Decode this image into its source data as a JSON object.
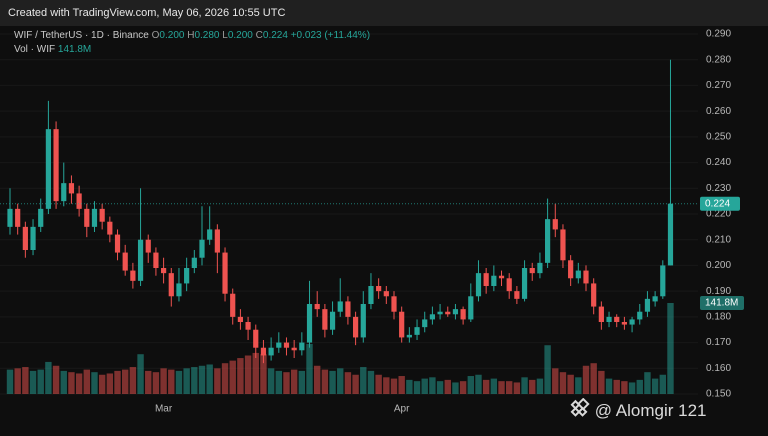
{
  "header": {
    "created": "Created with TradingView.com, May 06, 2026 10:55 UTC",
    "symbol": "WIF / TetherUS · 1D · Binance",
    "o_label": "O",
    "o": "0.200",
    "h_label": "H",
    "h": "0.280",
    "l_label": "L",
    "l": "0.200",
    "c_label": "C",
    "c": "0.224",
    "change": "+0.023 (+11.44%)",
    "vol_label": "Vol · WIF",
    "vol": "141.8M"
  },
  "watermark": "@ Alomgir 121",
  "chart_data": {
    "type": "candlestick",
    "categories": [
      null,
      null,
      null,
      null,
      null,
      null,
      null,
      null,
      null,
      null,
      null,
      null,
      null,
      null,
      null,
      null,
      null,
      null,
      null,
      null,
      "Mar",
      null,
      null,
      null,
      null,
      null,
      null,
      null,
      null,
      null,
      null,
      null,
      null,
      null,
      null,
      null,
      null,
      null,
      null,
      null,
      null,
      null,
      null,
      null,
      null,
      null,
      null,
      null,
      null,
      null,
      null,
      "Apr",
      null,
      null,
      null,
      null,
      null,
      null,
      null,
      null,
      null,
      null,
      null,
      null,
      null,
      null,
      null,
      null,
      null,
      null,
      null,
      null,
      null,
      null,
      null,
      null,
      null,
      null,
      null,
      null,
      null,
      null,
      null,
      null,
      null,
      null,
      null
    ],
    "open": [
      0.215,
      0.222,
      0.215,
      0.206,
      0.215,
      0.222,
      0.253,
      0.225,
      0.232,
      0.228,
      0.222,
      0.215,
      0.222,
      0.217,
      0.212,
      0.205,
      0.198,
      0.194,
      0.21,
      0.205,
      0.199,
      0.197,
      0.188,
      0.193,
      0.199,
      0.203,
      0.21,
      0.214,
      0.205,
      0.189,
      0.18,
      0.178,
      0.175,
      0.168,
      0.165,
      0.168,
      0.17,
      0.168,
      0.167,
      0.17,
      0.185,
      0.183,
      0.175,
      0.182,
      0.186,
      0.18,
      0.172,
      0.185,
      0.192,
      0.19,
      0.188,
      0.182,
      0.172,
      0.173,
      0.176,
      0.179,
      0.181,
      0.182,
      0.181,
      0.183,
      0.179,
      0.188,
      0.197,
      0.192,
      0.196,
      0.195,
      0.19,
      0.187,
      0.199,
      0.197,
      0.201,
      0.218,
      0.214,
      0.202,
      0.195,
      0.198,
      0.193,
      0.184,
      0.178,
      0.18,
      0.178,
      0.177,
      0.179,
      0.182,
      0.186,
      0.188,
      0.2
    ],
    "high": [
      0.23,
      0.224,
      0.217,
      0.218,
      0.226,
      0.264,
      0.256,
      0.24,
      0.235,
      0.231,
      0.224,
      0.225,
      0.224,
      0.219,
      0.214,
      0.208,
      0.201,
      0.23,
      0.212,
      0.207,
      0.203,
      0.199,
      0.199,
      0.203,
      0.206,
      0.223,
      0.223,
      0.216,
      0.207,
      0.191,
      0.183,
      0.18,
      0.177,
      0.171,
      0.172,
      0.174,
      0.172,
      0.171,
      0.174,
      0.194,
      0.19,
      0.185,
      0.186,
      0.195,
      0.188,
      0.182,
      0.19,
      0.197,
      0.195,
      0.192,
      0.19,
      0.184,
      0.176,
      0.179,
      0.182,
      0.184,
      0.185,
      0.184,
      0.185,
      0.184,
      0.193,
      0.202,
      0.199,
      0.2,
      0.198,
      0.197,
      0.192,
      0.202,
      0.201,
      0.205,
      0.226,
      0.224,
      0.216,
      0.204,
      0.201,
      0.2,
      0.195,
      0.186,
      0.182,
      0.181,
      0.18,
      0.18,
      0.185,
      0.19,
      0.19,
      0.202,
      0.28
    ],
    "low": [
      0.212,
      0.212,
      0.203,
      0.204,
      0.213,
      0.22,
      0.222,
      0.223,
      0.224,
      0.219,
      0.211,
      0.213,
      0.214,
      0.209,
      0.202,
      0.196,
      0.191,
      0.192,
      0.201,
      0.196,
      0.193,
      0.184,
      0.186,
      0.19,
      0.197,
      0.2,
      0.208,
      0.197,
      0.186,
      0.177,
      0.175,
      0.171,
      0.164,
      0.162,
      0.163,
      0.166,
      0.165,
      0.164,
      0.165,
      0.168,
      0.18,
      0.172,
      0.173,
      0.18,
      0.177,
      0.169,
      0.17,
      0.183,
      0.187,
      0.185,
      0.179,
      0.17,
      0.17,
      0.171,
      0.174,
      0.177,
      0.179,
      0.18,
      0.179,
      0.177,
      0.178,
      0.186,
      0.189,
      0.19,
      0.192,
      0.187,
      0.185,
      0.186,
      0.194,
      0.195,
      0.199,
      0.211,
      0.199,
      0.192,
      0.193,
      0.19,
      0.181,
      0.175,
      0.176,
      0.176,
      0.175,
      0.174,
      0.177,
      0.18,
      0.184,
      0.187,
      0.2
    ],
    "close": [
      0.222,
      0.215,
      0.206,
      0.215,
      0.222,
      0.253,
      0.225,
      0.232,
      0.228,
      0.222,
      0.215,
      0.222,
      0.217,
      0.212,
      0.205,
      0.198,
      0.194,
      0.21,
      0.205,
      0.199,
      0.197,
      0.188,
      0.193,
      0.199,
      0.203,
      0.21,
      0.214,
      0.205,
      0.189,
      0.18,
      0.178,
      0.175,
      0.168,
      0.165,
      0.168,
      0.17,
      0.168,
      0.167,
      0.17,
      0.185,
      0.183,
      0.175,
      0.182,
      0.186,
      0.18,
      0.172,
      0.185,
      0.192,
      0.19,
      0.188,
      0.182,
      0.172,
      0.173,
      0.176,
      0.179,
      0.181,
      0.182,
      0.181,
      0.183,
      0.179,
      0.188,
      0.197,
      0.192,
      0.196,
      0.195,
      0.19,
      0.187,
      0.199,
      0.197,
      0.201,
      0.218,
      0.214,
      0.202,
      0.195,
      0.198,
      0.193,
      0.184,
      0.178,
      0.18,
      0.178,
      0.177,
      0.179,
      0.182,
      0.187,
      0.188,
      0.2,
      0.224
    ],
    "volume": [
      38,
      40,
      42,
      36,
      38,
      50,
      44,
      36,
      34,
      32,
      38,
      34,
      30,
      32,
      36,
      38,
      42,
      62,
      36,
      34,
      40,
      38,
      36,
      40,
      42,
      44,
      46,
      40,
      48,
      52,
      56,
      60,
      64,
      62,
      40,
      36,
      34,
      38,
      36,
      78,
      44,
      38,
      36,
      40,
      34,
      30,
      42,
      36,
      30,
      26,
      24,
      28,
      22,
      20,
      24,
      26,
      20,
      22,
      18,
      20,
      28,
      30,
      22,
      24,
      20,
      20,
      18,
      26,
      22,
      24,
      76,
      40,
      34,
      30,
      26,
      44,
      48,
      36,
      24,
      22,
      20,
      18,
      22,
      34,
      24,
      30,
      141.8
    ],
    "up_color": "#26a69a",
    "down_color": "#ef5350",
    "ylim": [
      0.15,
      0.29
    ],
    "yticks": [
      {
        "value": 0.15,
        "label": "0.150"
      },
      {
        "value": 0.16,
        "label": "0.160"
      },
      {
        "value": 0.17,
        "label": "0.170"
      },
      {
        "value": 0.18,
        "label": "0.180"
      },
      {
        "value": 0.19,
        "label": "0.190"
      },
      {
        "value": 0.2,
        "label": "0.200"
      },
      {
        "value": 0.21,
        "label": "0.210"
      },
      {
        "value": 0.22,
        "label": "0.220"
      },
      {
        "value": 0.23,
        "label": "0.230"
      },
      {
        "value": 0.24,
        "label": "0.240"
      },
      {
        "value": 0.25,
        "label": "0.250"
      },
      {
        "value": 0.26,
        "label": "0.260"
      },
      {
        "value": 0.27,
        "label": "0.270"
      },
      {
        "value": 0.28,
        "label": "0.280"
      },
      {
        "value": 0.29,
        "label": "0.290"
      }
    ],
    "last_price": {
      "value": 0.224,
      "label": "0.224"
    },
    "last_volume": {
      "value": 141.8,
      "label": "141.8M"
    },
    "grid": true
  }
}
